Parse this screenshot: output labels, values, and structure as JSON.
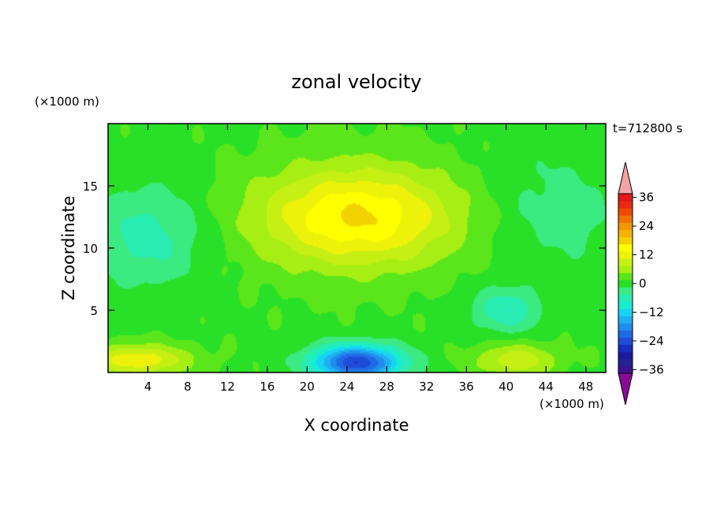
{
  "chart_data": {
    "type": "heatmap",
    "title": "zonal velocity",
    "xlabel": "X coordinate",
    "ylabel": "Z coordinate",
    "x_unit_label": "(×1000 m)",
    "y_unit_label": "(×1000 m)",
    "time_label": "t=712800 s",
    "xlim": [
      0,
      50
    ],
    "ylim": [
      0,
      20
    ],
    "x_ticks": [
      4,
      8,
      12,
      16,
      20,
      24,
      28,
      32,
      36,
      40,
      44,
      48
    ],
    "y_ticks": [
      5,
      10,
      15
    ],
    "colorbar": {
      "levels": [
        -42,
        -39,
        -36,
        -33,
        -30,
        -27,
        -24,
        -21,
        -18,
        -15,
        -12,
        -9,
        -6,
        -3,
        0,
        3,
        6,
        9,
        12,
        15,
        18,
        21,
        24,
        27,
        30,
        33,
        36,
        39,
        42
      ],
      "colors": [
        "#3c1290",
        "#27208f",
        "#1a1aa0",
        "#1a2ec0",
        "#1e4bd8",
        "#1e6be6",
        "#1f8cee",
        "#1fb0f2",
        "#18d4f2",
        "#18ecd2",
        "#28ecb2",
        "#3cea82",
        "#28e028",
        "#5ae61a",
        "#a6ee14",
        "#c6f014",
        "#eef20a",
        "#ffff00",
        "#f2d200",
        "#f2b400",
        "#f29600",
        "#f27200",
        "#f04a00",
        "#e82a10",
        "#e01818"
      ],
      "under_color": "#8a0a98",
      "over_color": "#f4a4a4",
      "tick_labels": [
        "-36",
        "-24",
        "-12",
        "0",
        "12",
        "24",
        "36"
      ]
    },
    "field_features": [
      {
        "name": "upper jet",
        "x": 25,
        "z": 12.5,
        "value": 16
      },
      {
        "name": "low-level counterflow",
        "x": 25,
        "z": 0.8,
        "value": -26
      },
      {
        "name": "upper-left westward",
        "x": 4,
        "z": 11,
        "value": -7
      },
      {
        "name": "right-side westward",
        "x": 45,
        "z": 13,
        "value": -4
      },
      {
        "name": "near-surface left",
        "x": 3,
        "z": 1,
        "value": 12
      },
      {
        "name": "near-surface right",
        "x": 41,
        "z": 1,
        "value": 9
      },
      {
        "name": "lower-right pocket",
        "x": 40,
        "z": 5,
        "value": -8
      }
    ]
  }
}
